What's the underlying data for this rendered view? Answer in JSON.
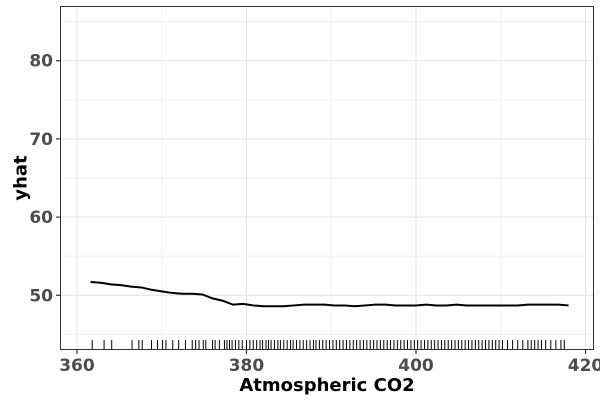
{
  "chart_data": {
    "type": "line",
    "title": "",
    "xlabel": "Atmospheric CO2",
    "ylabel": "yhat",
    "xlim": [
      358,
      421
    ],
    "ylim": [
      43,
      87
    ],
    "x_ticks": [
      360,
      380,
      400,
      420
    ],
    "y_ticks": [
      50,
      60,
      70,
      80
    ],
    "x_tick_labels": [
      "360",
      "380",
      "400",
      "420"
    ],
    "y_tick_labels": [
      "50",
      "60",
      "70",
      "80"
    ],
    "grid": true,
    "legend": "none",
    "colors": {
      "line": "#000000",
      "grid_major": "#e6e6e6",
      "grid_minor": "#f2f2f2",
      "panel_border": "#333333",
      "rug": "#000000"
    },
    "series": [
      {
        "x": [
          361.6,
          362.8,
          364.0,
          365.2,
          366.4,
          367.6,
          368.8,
          370.0,
          371.2,
          372.4,
          373.6,
          374.8,
          376.0,
          377.2,
          378.4,
          379.6,
          380.8,
          382.0,
          383.2,
          384.4,
          385.6,
          386.8,
          388.0,
          389.2,
          390.4,
          391.6,
          392.8,
          394.0,
          395.2,
          396.4,
          397.6,
          398.8,
          400.0,
          401.2,
          402.4,
          403.6,
          404.8,
          406.0,
          407.2,
          408.4,
          409.6,
          410.8,
          412.0,
          413.2,
          414.4,
          415.6,
          416.8,
          418.0
        ],
        "y": [
          51.7,
          51.6,
          51.4,
          51.3,
          51.1,
          51.0,
          50.7,
          50.5,
          50.3,
          50.2,
          50.2,
          50.1,
          49.6,
          49.3,
          48.8,
          48.9,
          48.7,
          48.6,
          48.6,
          48.6,
          48.7,
          48.8,
          48.8,
          48.8,
          48.7,
          48.7,
          48.6,
          48.7,
          48.8,
          48.8,
          48.7,
          48.7,
          48.7,
          48.8,
          48.7,
          48.7,
          48.8,
          48.7,
          48.7,
          48.7,
          48.7,
          48.7,
          48.7,
          48.8,
          48.8,
          48.8,
          48.8,
          48.7
        ]
      }
    ],
    "rug_x": [
      361.8,
      363.2,
      364.1,
      366.5,
      367.3,
      367.7,
      368.8,
      369.5,
      370.1,
      370.5,
      371.3,
      372.0,
      372.8,
      373.6,
      374.0,
      374.4,
      374.9,
      375.2,
      376.0,
      376.3,
      376.8,
      377.4,
      377.7,
      378.0,
      378.3,
      378.7,
      379.1,
      379.5,
      380.0,
      380.4,
      380.8,
      381.2,
      381.6,
      381.9,
      382.3,
      382.6,
      382.9,
      383.3,
      383.7,
      384.0,
      384.4,
      384.8,
      385.2,
      385.5,
      385.9,
      386.3,
      386.7,
      387.1,
      387.5,
      387.9,
      388.2,
      388.6,
      389.0,
      389.4,
      389.8,
      390.2,
      390.6,
      391.0,
      391.4,
      391.8,
      392.2,
      392.6,
      393.0,
      393.4,
      393.8,
      394.2,
      394.6,
      395.0,
      395.4,
      395.8,
      396.2,
      396.6,
      397.0,
      397.4,
      397.8,
      398.2,
      398.6,
      399.0,
      399.4,
      399.8,
      400.2,
      400.6,
      401.0,
      401.4,
      401.8,
      402.2,
      402.6,
      403.0,
      403.4,
      403.8,
      404.2,
      404.6,
      405.0,
      405.4,
      405.8,
      406.2,
      406.6,
      407.0,
      407.4,
      407.8,
      408.2,
      408.6,
      409.0,
      409.4,
      409.8,
      410.2,
      410.8,
      411.4,
      412.0,
      412.6,
      413.2,
      413.6,
      414.0,
      414.4,
      414.8,
      415.3,
      415.9,
      416.5,
      417.1,
      417.5
    ]
  }
}
